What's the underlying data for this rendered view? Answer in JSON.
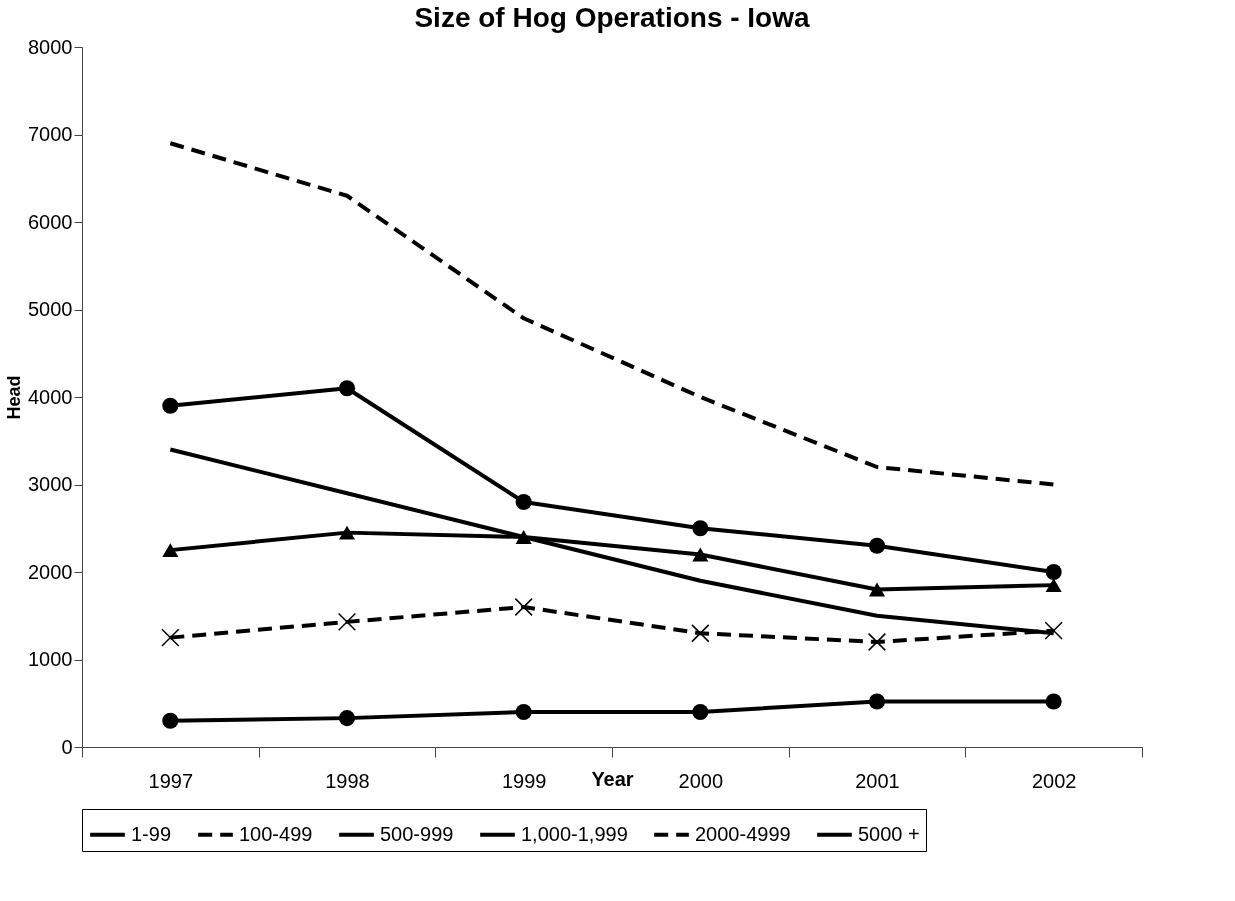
{
  "chart_data": {
    "type": "line",
    "title": "Size of Hog Operations - Iowa",
    "xlabel": "Year",
    "ylabel": "Head",
    "categories": [
      "1997",
      "1998",
      "1999",
      "2000",
      "2001",
      "2002"
    ],
    "ylim": [
      0,
      8000
    ],
    "yticks": [
      0,
      1000,
      2000,
      3000,
      4000,
      5000,
      6000,
      7000,
      8000
    ],
    "grid": false,
    "legend": "bottom",
    "series": [
      {
        "name": "1-99",
        "color": "#000000",
        "line_style": "solid",
        "marker": "none",
        "values": [
          3400,
          2900,
          2400,
          1900,
          1500,
          1300
        ]
      },
      {
        "name": "100-499",
        "color": "#000000",
        "line_style": "dashed",
        "marker": "none",
        "values": [
          6900,
          6300,
          4900,
          4000,
          3200,
          3000
        ]
      },
      {
        "name": "500-999",
        "color": "#000000",
        "line_style": "solid",
        "marker": "circle",
        "values": [
          3900,
          4100,
          2800,
          2500,
          2300,
          2000
        ]
      },
      {
        "name": "1,000-1,999",
        "color": "#000000",
        "line_style": "solid",
        "marker": "triangle",
        "values": [
          2250,
          2450,
          2400,
          2200,
          1800,
          1850
        ]
      },
      {
        "name": "2000-4999",
        "color": "#000000",
        "line_style": "dashed",
        "marker": "cross",
        "values": [
          1250,
          1430,
          1600,
          1300,
          1200,
          1330
        ]
      },
      {
        "name": "5000 +",
        "color": "#000000",
        "line_style": "solid",
        "marker": "circle",
        "values": [
          300,
          330,
          400,
          400,
          520,
          520
        ]
      }
    ]
  }
}
